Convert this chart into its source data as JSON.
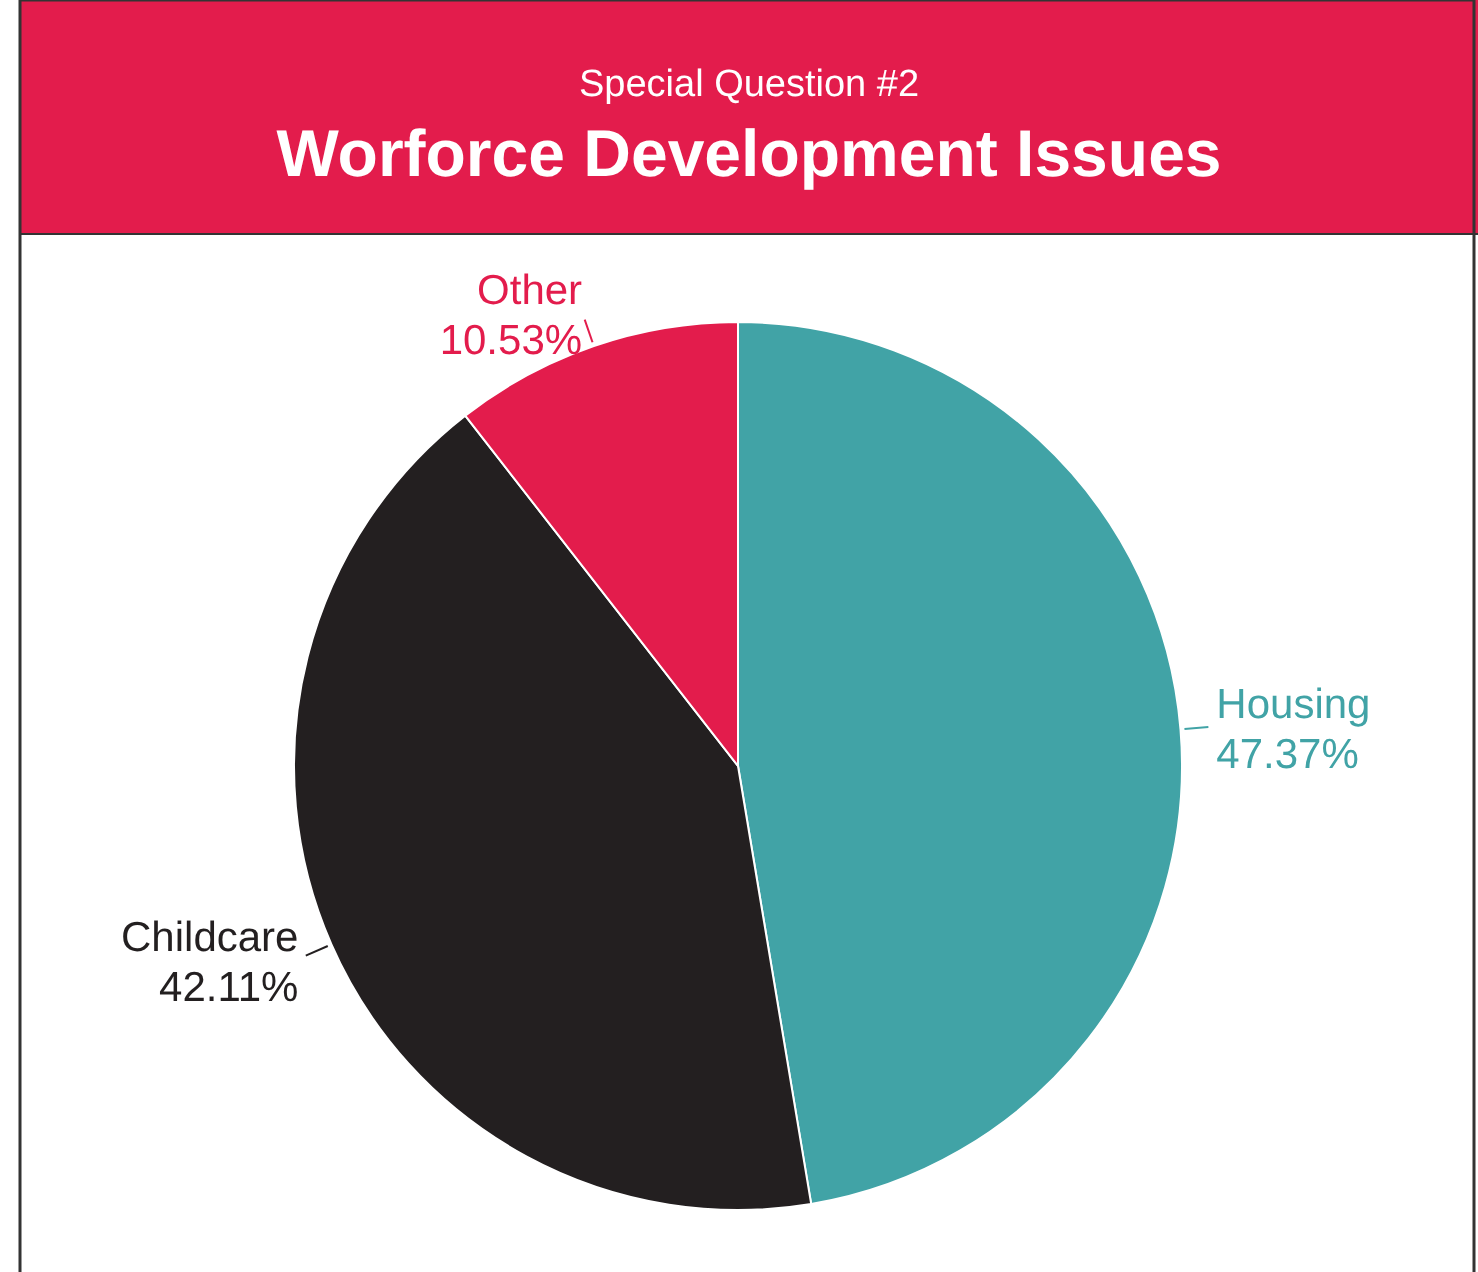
{
  "chart_data": {
    "type": "pie",
    "title": "Worforce Development Issues",
    "subtitle": "Special Question #2",
    "categories": [
      "Housing",
      "Childcare",
      "Other"
    ],
    "values": [
      47.37,
      42.11,
      10.53
    ],
    "colors": [
      "#41a3a6",
      "#231f20",
      "#e31c4c"
    ],
    "value_labels": [
      "47.37%",
      "42.11%",
      "10.53%"
    ]
  }
}
